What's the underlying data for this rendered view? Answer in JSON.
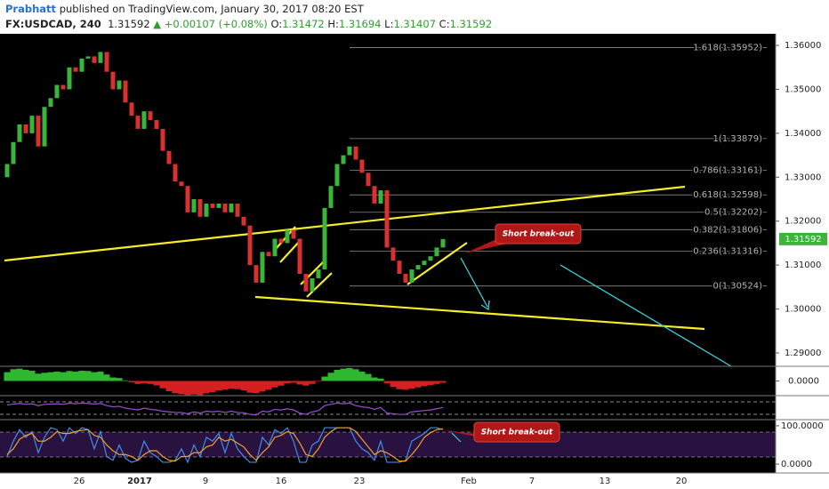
{
  "header": {
    "author": "Prabhatt",
    "published": "published on TradingView.com, January 30, 2017 08:20 EST",
    "symbol": "FX:USDCAD, 240",
    "price": "1.31592",
    "change": "▲ +0.00107 (+0.08%)",
    "ohlc": [
      {
        "key": "O:",
        "value": "1.31472"
      },
      {
        "key": "H:",
        "value": "1.31694"
      },
      {
        "key": "L:",
        "value": "1.31407"
      },
      {
        "key": "C:",
        "value": "1.31592"
      }
    ]
  },
  "chart_data": [
    {
      "type": "candlestick",
      "up_color": "#3ab53a",
      "down_color": "#d93030",
      "open": 1.33,
      "closes": [
        1.333,
        1.338,
        1.342,
        1.34,
        1.344,
        1.337,
        1.346,
        1.348,
        1.351,
        1.35,
        1.355,
        1.354,
        1.357,
        1.3575,
        1.356,
        1.3585,
        1.354,
        1.35,
        1.352,
        1.347,
        1.344,
        1.341,
        1.345,
        1.343,
        1.341,
        1.336,
        1.333,
        1.329,
        1.328,
        1.322,
        1.325,
        1.321,
        1.324,
        1.323,
        1.324,
        1.322,
        1.324,
        1.321,
        1.319,
        1.31,
        1.306,
        1.313,
        1.312,
        1.316,
        1.315,
        1.318,
        1.316,
        1.308,
        1.304,
        1.307,
        1.309,
        1.323,
        1.328,
        1.333,
        1.335,
        1.337,
        1.334,
        1.331,
        1.328,
        1.324,
        1.327,
        1.314,
        1.311,
        1.308,
        1.306,
        1.309,
        1.31,
        1.311,
        1.312,
        1.314,
        1.31592
      ],
      "ylim": [
        1.28696,
        1.36264
      ],
      "yticks": [
        {
          "value": 1.29,
          "label": "1.29000"
        },
        {
          "value": 1.3,
          "label": "1.30000"
        },
        {
          "value": 1.31,
          "label": "1.31000"
        },
        {
          "value": 1.32,
          "label": "1.32000"
        },
        {
          "value": 1.33,
          "label": "1.33000"
        },
        {
          "value": 1.34,
          "label": "1.34000"
        },
        {
          "value": 1.35,
          "label": "1.35000"
        },
        {
          "value": 1.36,
          "label": "1.36000"
        }
      ],
      "fib_levels": [
        {
          "value": 1.35952,
          "label": "1.618(1.35952)"
        },
        {
          "value": 1.33879,
          "label": "1(1.33879)"
        },
        {
          "value": 1.33161,
          "label": "0.786(1.33161)"
        },
        {
          "value": 1.32598,
          "label": "0.618(1.32598)"
        },
        {
          "value": 1.32202,
          "label": "0.5(1.32202)"
        },
        {
          "value": 1.31806,
          "label": "0.382(1.31806)"
        },
        {
          "value": 1.31316,
          "label": "0.236(1.31316)"
        },
        {
          "value": 1.30524,
          "label": "0(1.30524)"
        }
      ],
      "last_price": 1.31592,
      "annotation": "Short break-out",
      "time_labels": [
        "26",
        "2017",
        "9",
        "16",
        "23",
        "Feb",
        "7",
        "13",
        "20"
      ]
    },
    {
      "type": "bar",
      "up_color": "#2fb82f",
      "down_color": "#d42020",
      "values": [
        0.003,
        0.004,
        0.0042,
        0.0038,
        0.0035,
        0.0025,
        0.0028,
        0.003,
        0.0032,
        0.003,
        0.0034,
        0.0032,
        0.0035,
        0.0034,
        0.003,
        0.0032,
        0.0022,
        0.0012,
        0.001,
        0.0002,
        -0.0005,
        -0.001,
        -0.0008,
        -0.001,
        -0.0015,
        -0.0025,
        -0.0035,
        -0.0042,
        -0.0045,
        -0.0048,
        -0.0046,
        -0.0048,
        -0.0042,
        -0.0038,
        -0.0032,
        -0.003,
        -0.0026,
        -0.0028,
        -0.0032,
        -0.004,
        -0.0042,
        -0.0036,
        -0.003,
        -0.0022,
        -0.0016,
        -0.0008,
        -0.0006,
        -0.0012,
        -0.0016,
        -0.001,
        -0.0002,
        0.0015,
        0.0028,
        0.0038,
        0.0042,
        0.0044,
        0.004,
        0.0032,
        0.0024,
        0.0012,
        0.0008,
        -0.0008,
        -0.002,
        -0.0028,
        -0.003,
        -0.0026,
        -0.0022,
        -0.0018,
        -0.0014,
        -0.001,
        -0.0006
      ],
      "ylim": [
        -0.005,
        0.005
      ],
      "yticks": [
        {
          "value": 0,
          "label": "0.0000"
        }
      ]
    },
    {
      "type": "line",
      "color": "#9a4fd0",
      "values": [
        60,
        63,
        65,
        62,
        64,
        58,
        62,
        63,
        64,
        62,
        66,
        64,
        66,
        65,
        63,
        65,
        58,
        54,
        56,
        50,
        47,
        44,
        50,
        46,
        44,
        40,
        38,
        36,
        36,
        32,
        38,
        34,
        40,
        38,
        40,
        36,
        40,
        36,
        35,
        30,
        28,
        40,
        38,
        46,
        44,
        48,
        44,
        34,
        30,
        38,
        42,
        58,
        62,
        66,
        64,
        66,
        58,
        54,
        52,
        46,
        52,
        34,
        32,
        30,
        30,
        38,
        40,
        42,
        44,
        48,
        52
      ],
      "ylim": [
        13,
        90
      ]
    },
    {
      "type": "line",
      "annotation": "Short break-out",
      "series": [
        {
          "color": "#3f8ee8",
          "values": [
            20,
            60,
            90,
            70,
            85,
            30,
            70,
            95,
            90,
            60,
            95,
            80,
            95,
            90,
            40,
            85,
            20,
            10,
            50,
            15,
            5,
            10,
            60,
            30,
            20,
            5,
            5,
            10,
            40,
            5,
            50,
            20,
            70,
            60,
            80,
            30,
            80,
            40,
            20,
            5,
            5,
            70,
            50,
            90,
            80,
            95,
            60,
            5,
            5,
            50,
            60,
            95,
            95,
            95,
            95,
            95,
            60,
            40,
            30,
            10,
            60,
            5,
            5,
            5,
            10,
            60,
            70,
            80,
            95,
            95,
            90
          ]
        },
        {
          "color": "#f0a030",
          "values": [
            25,
            40,
            65,
            75,
            80,
            60,
            60,
            70,
            85,
            80,
            80,
            85,
            88,
            90,
            75,
            70,
            50,
            35,
            25,
            25,
            20,
            10,
            25,
            35,
            35,
            20,
            10,
            8,
            20,
            20,
            30,
            30,
            45,
            50,
            70,
            60,
            65,
            55,
            45,
            25,
            10,
            30,
            45,
            70,
            75,
            85,
            80,
            55,
            25,
            20,
            40,
            70,
            85,
            95,
            95,
            95,
            85,
            65,
            45,
            25,
            35,
            30,
            20,
            8,
            8,
            25,
            45,
            70,
            82,
            90,
            92
          ]
        }
      ],
      "ylim": [
        -23,
        116
      ],
      "yticks": [
        {
          "value": 100,
          "label": "100.0000"
        },
        {
          "value": 0,
          "label": "0.0000"
        }
      ]
    }
  ]
}
